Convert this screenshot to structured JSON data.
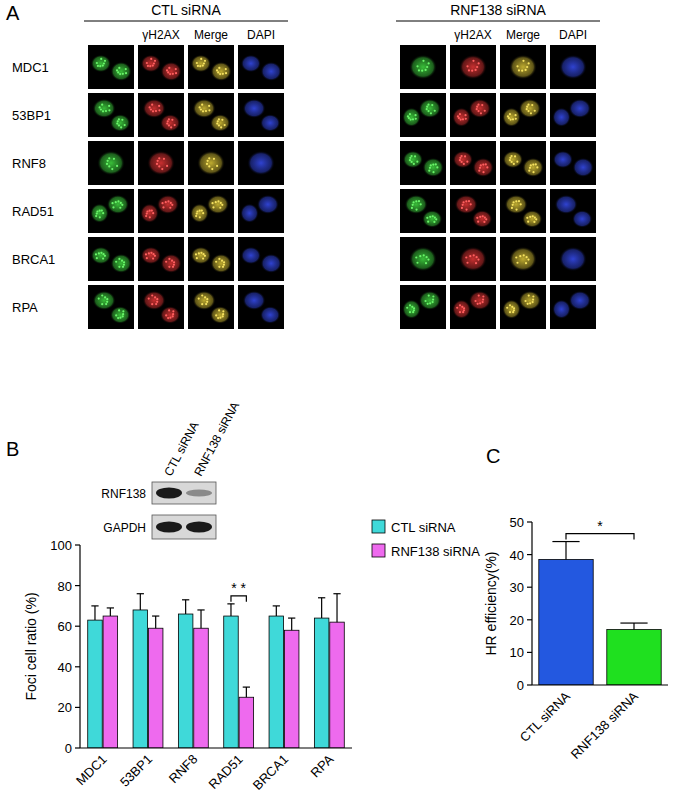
{
  "panels": [
    "A",
    "B",
    "C"
  ],
  "image_panel": {
    "groups": [
      "CTL siRNA",
      "RNF138 siRNA"
    ],
    "columns": [
      "γH2AX",
      "Merge",
      "DAPI"
    ],
    "rows": [
      "MDC1",
      "53BP1",
      "RNF8",
      "RAD51",
      "BRCA1",
      "RPA"
    ]
  },
  "chart_data": [
    {
      "type": "bar",
      "categories": [
        "MDC1",
        "53BP1",
        "RNF8",
        "RAD51",
        "BRCA1",
        "RPA"
      ],
      "series": [
        {
          "name": "CTL siRNA",
          "color": "#3fd9d9",
          "values": [
            63,
            68,
            66,
            65,
            65,
            64
          ],
          "errors": [
            7,
            8,
            7,
            6,
            5,
            10
          ]
        },
        {
          "name": "RNF138 siRNA",
          "color": "#ee6aee",
          "values": [
            65,
            59,
            59,
            25,
            58,
            62
          ],
          "errors": [
            4,
            6,
            9,
            5,
            6,
            14
          ]
        }
      ],
      "y_label": "Foci cell ratio (%)",
      "ylim": [
        0,
        100
      ],
      "yticks": [
        0,
        20,
        40,
        60,
        80,
        100
      ],
      "legend": "right",
      "annotations": [
        {
          "text": "* *",
          "category": "RAD51"
        }
      ],
      "inset": {
        "lanes": [
          "CTL siRNA",
          "RNF138 siRNA"
        ],
        "bands": [
          "RNF138",
          "GAPDH"
        ]
      }
    },
    {
      "type": "bar",
      "categories": [
        "CTL siRNA",
        "RNF138 siRNA"
      ],
      "values": [
        38.5,
        17
      ],
      "errors": [
        5.5,
        2
      ],
      "colors": [
        "#2358e0",
        "#1fe01f"
      ],
      "y_label": "HR efficiency(%)",
      "ylim": [
        0,
        50
      ],
      "yticks": [
        0,
        10,
        20,
        30,
        40,
        50
      ],
      "annotations": [
        {
          "text": "*",
          "categories": [
            "CTL siRNA",
            "RNF138 siRNA"
          ]
        }
      ]
    }
  ]
}
